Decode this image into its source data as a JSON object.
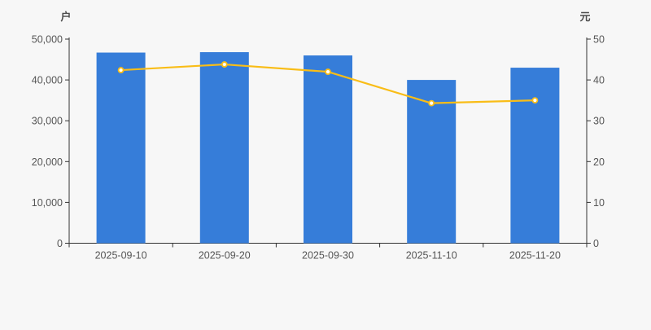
{
  "chart_data": {
    "type": "bar",
    "title": "",
    "categories": [
      "2025-09-10",
      "2025-09-20",
      "2025-09-30",
      "2025-11-10",
      "2025-11-20"
    ],
    "series": [
      {
        "type": "bar",
        "axis": "left",
        "values": [
          46700,
          46800,
          46000,
          40000,
          43000
        ]
      },
      {
        "type": "line",
        "axis": "right",
        "values": [
          42.4,
          43.8,
          42.0,
          34.3,
          35.0
        ]
      }
    ],
    "axis_left": {
      "name": "户",
      "ylim": [
        0,
        50000
      ],
      "interval": 10000,
      "ticks": [
        "0",
        "10,000",
        "20,000",
        "30,000",
        "40,000",
        "50,000"
      ]
    },
    "axis_right": {
      "name": "元",
      "ylim": [
        0,
        50
      ],
      "interval": 10,
      "ticks": [
        "0",
        "10",
        "20",
        "30",
        "40",
        "50"
      ]
    },
    "legend": "none",
    "grid": "off",
    "colors": {
      "bar": "#367dd9",
      "line": "#f9bd17",
      "marker_fill": "#ffffff",
      "axis_line": "#333333",
      "tick_text": "#555555",
      "background": "#f7f7f7"
    }
  }
}
